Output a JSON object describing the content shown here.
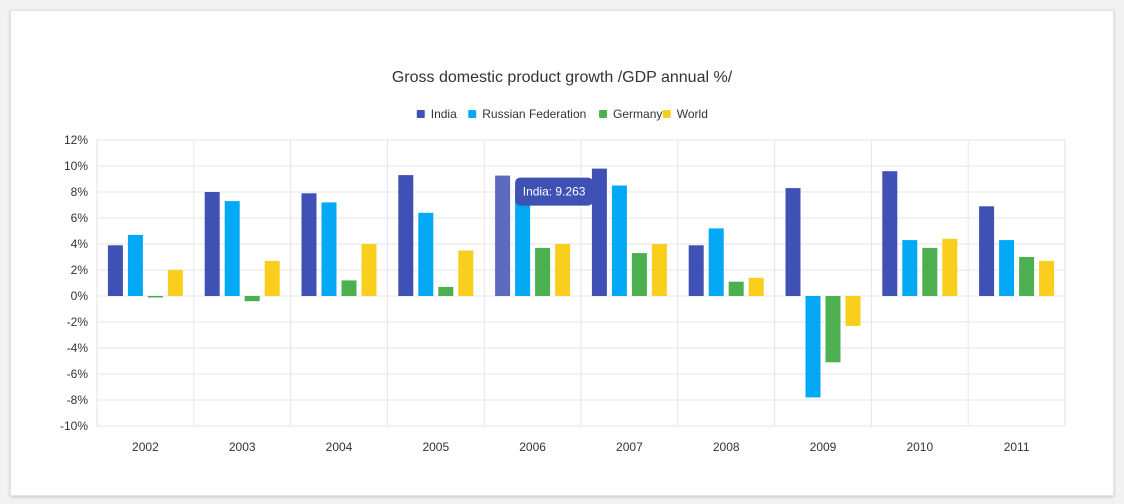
{
  "chart_data": {
    "type": "bar",
    "title": "Gross domestic product growth /GDP annual %/",
    "categories": [
      "2002",
      "2003",
      "2004",
      "2005",
      "2006",
      "2007",
      "2008",
      "2009",
      "2010",
      "2011"
    ],
    "series": [
      {
        "name": "India",
        "color": "#3f51b5",
        "values": [
          3.9,
          8.0,
          7.9,
          9.3,
          9.263,
          9.8,
          3.9,
          8.3,
          9.6,
          6.9
        ]
      },
      {
        "name": "Russian Federation",
        "color": "#03a9f4",
        "values": [
          4.7,
          7.3,
          7.2,
          6.4,
          8.2,
          8.5,
          5.2,
          -7.8,
          4.3,
          4.3
        ]
      },
      {
        "name": "Germany",
        "color": "#4caf50",
        "values": [
          0.0,
          -0.4,
          1.2,
          0.7,
          3.7,
          3.3,
          1.1,
          -5.1,
          3.7,
          3.0
        ]
      },
      {
        "name": "World",
        "color": "#f9ce1d",
        "values": [
          2.0,
          2.7,
          4.0,
          3.5,
          4.0,
          4.0,
          1.4,
          -2.3,
          4.4,
          2.7
        ]
      }
    ],
    "y_ticks": [
      "12%",
      "10%",
      "8%",
      "6%",
      "4%",
      "2%",
      "0%",
      "-2%",
      "-4%",
      "-6%",
      "-8%",
      "-10%"
    ],
    "ylim": [
      -10,
      12
    ],
    "xlabel": "",
    "ylabel": "",
    "grid": true,
    "legend_position": "top-center",
    "tooltip": {
      "text": "India: 9.263",
      "category": "2006",
      "series": "India",
      "color": "#3f51b5"
    }
  }
}
